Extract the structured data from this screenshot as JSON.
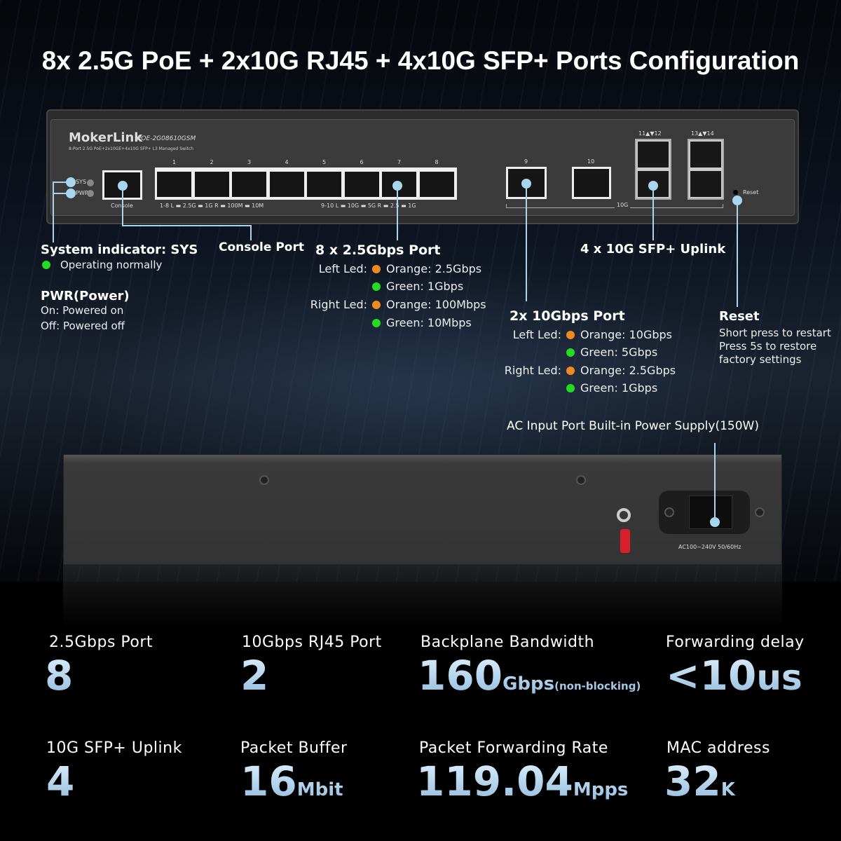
{
  "title": "8x 2.5G PoE + 2x10G RJ45 + 4x10G SFP+ Ports Configuration",
  "device": {
    "brand": "MokerLink",
    "model": "POE-2G08610GSM",
    "subtitle": "8-Port 2.5G PoE+2x10GE+4x10G SFP+ L3 Managed Switch",
    "sys_label": "SYS",
    "pwr_label": "PWR",
    "console_label": "Console",
    "port_numbers": [
      "1",
      "2",
      "3",
      "4",
      "5",
      "6",
      "7",
      "8"
    ],
    "led_legend_1_8": "1-8  L ▬ 2.5G ▬ 1G  R ▬ 100M ▬ 10M",
    "led_legend_9_10": "9-10  L ▬ 10G ▬ 5G  R ▬ 2.5 ▬ 1G",
    "port_9": "9",
    "port_10": "10",
    "group_10g": "10G",
    "sfp_1": "11▲▼12",
    "sfp_2": "13▲▼14",
    "reset_label": "Reset",
    "ac_label": "AC100~240V 50/60Hz"
  },
  "callouts": {
    "sys": {
      "title": "System indicator: SYS",
      "line": "Operating normally"
    },
    "pwr": {
      "title": "PWR(Power)",
      "on": "On: Powered on",
      "off": "Off: Powered off"
    },
    "console": {
      "title": "Console Port"
    },
    "ports_25g": {
      "title": "8 x 2.5Gbps Port",
      "left": "Left Led:",
      "right": "Right Led:",
      "items": [
        "Orange: 2.5Gbps",
        "Green: 1Gbps",
        "Orange: 100Mbps",
        "Green: 10Mbps"
      ]
    },
    "ports_10g": {
      "title": "2x 10Gbps Port",
      "left": "Left Led:",
      "right": "Right Led:",
      "items": [
        "Orange: 10Gbps",
        "Green: 5Gbps",
        "Orange: 2.5Gbps",
        "Green: 1Gbps"
      ]
    },
    "sfp": {
      "title": "4 x 10G SFP+ Uplink"
    },
    "reset": {
      "title": "Reset",
      "lines": [
        "Short press to restart",
        "Press 5s to restore",
        "factory settings"
      ]
    },
    "ac": {
      "title": "AC Input Port Built-in Power Supply(150W)"
    }
  },
  "colors": {
    "orange": "#f08a20",
    "green": "#22dd22",
    "callout": "#a9d6ee",
    "value": "#bfe1fa"
  },
  "stats": [
    {
      "label": "2.5Gbps Port",
      "value": "8",
      "unit": ""
    },
    {
      "label": "10Gbps RJ45 Port",
      "value": "2",
      "unit": ""
    },
    {
      "label": "Backplane Bandwidth",
      "value": "160",
      "unit": "Gbps",
      "note": "(non-blocking)"
    },
    {
      "label": "Forwarding delay",
      "value": "<10",
      "unit": "us"
    },
    {
      "label": "10G SFP+ Uplink",
      "value": "4",
      "unit": ""
    },
    {
      "label": "Packet Buffer",
      "value": "16",
      "unit": "Mbit"
    },
    {
      "label": "Packet Forwarding Rate",
      "value": "119.04",
      "unit": "Mpps"
    },
    {
      "label": "MAC address",
      "value": "32",
      "unit": "K"
    }
  ]
}
